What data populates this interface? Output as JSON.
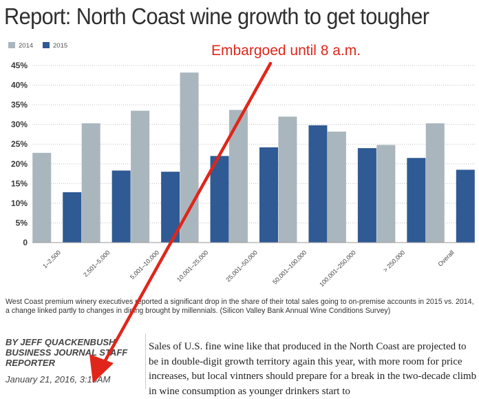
{
  "headline": "Report: North Coast wine growth to get tougher",
  "annotation": {
    "text": "Embargoed until 8 a.m.",
    "color": "#e0261a"
  },
  "caption": "West Coast premium winery executives reported a significant drop in the share of their total sales going to on-premise accounts in 2015 vs. 2014, a change linked partly to changes in dining brought by millennials. (Silicon Valley Bank Annual Wine Conditions Survey)",
  "byline": "By Jeff Quackenbush Business Journal Staff Reporter",
  "dateline": "January 21, 2016, 3:15AM",
  "article_text": "Sales of U.S. fine wine like that produced in the North Coast are projected to be in double-digit growth territory again this year, with more room for price increases, but local vintners should prepare for a break in the two-decade climb in wine consumption as younger drinkers start to",
  "chart_data": {
    "type": "bar",
    "categories": [
      "1–2,500",
      "2,501–5,000",
      "5,001–10,000",
      "10,001–25,000",
      "25,001–50,000",
      "50,001–100,000",
      "100,001–250,000",
      "> 250,000",
      "Overall"
    ],
    "series": [
      {
        "name": "2014",
        "color": "#aab6bd",
        "values": [
          22.8,
          30.3,
          33.5,
          43.2,
          33.7,
          32.0,
          28.2,
          24.8,
          30.3
        ]
      },
      {
        "name": "2015",
        "color": "#2f5a94",
        "values": [
          12.8,
          18.3,
          18.0,
          22.0,
          24.2,
          29.8,
          24.0,
          21.5,
          18.5
        ]
      }
    ],
    "ylim": [
      0,
      45
    ],
    "yticks": [
      0,
      5,
      10,
      15,
      20,
      25,
      30,
      35,
      40,
      45
    ],
    "ytick_labels": [
      "0",
      "5%",
      "10%",
      "15%",
      "20%",
      "25%",
      "30%",
      "35%",
      "40%",
      "45%"
    ],
    "legend_position": "top-left",
    "grid": true,
    "title": "",
    "xlabel": "",
    "ylabel": ""
  }
}
